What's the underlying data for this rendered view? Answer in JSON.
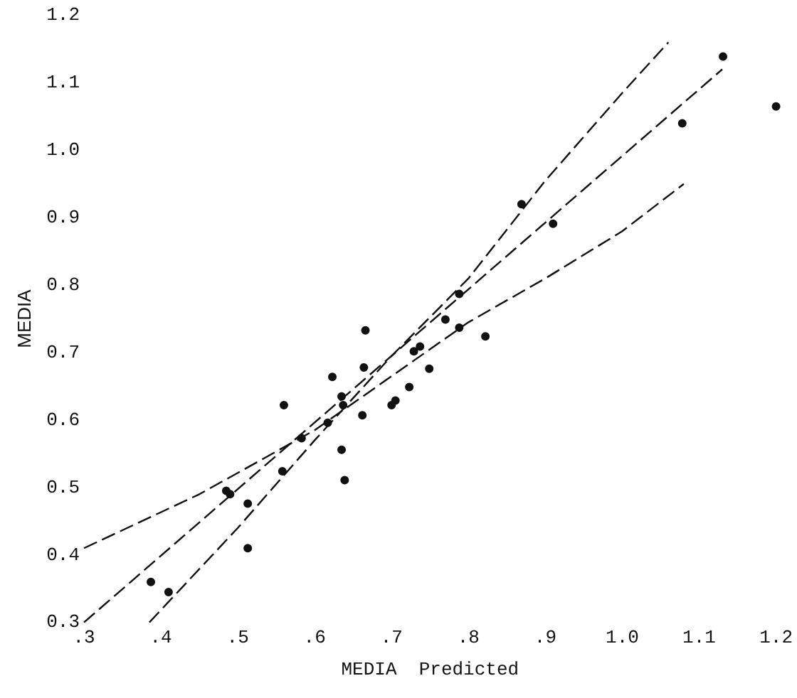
{
  "chart_data": {
    "type": "scatter",
    "xlabel": "MEDIA  Predicted",
    "ylabel": "MEDIA",
    "xlim": [
      0.3,
      1.2
    ],
    "ylim": [
      0.3,
      1.2
    ],
    "xticks": [
      {
        "value": 0.3,
        "label": ".3"
      },
      {
        "value": 0.4,
        "label": ".4"
      },
      {
        "value": 0.5,
        "label": ".5"
      },
      {
        "value": 0.6,
        "label": ".6"
      },
      {
        "value": 0.7,
        "label": ".7"
      },
      {
        "value": 0.8,
        "label": ".8"
      },
      {
        "value": 0.9,
        "label": ".9"
      },
      {
        "value": 1.0,
        "label": "1.0"
      },
      {
        "value": 1.1,
        "label": "1.1"
      },
      {
        "value": 1.2,
        "label": "1.2"
      }
    ],
    "yticks": [
      {
        "value": 0.3,
        "label": "0.3"
      },
      {
        "value": 0.4,
        "label": "0.4"
      },
      {
        "value": 0.5,
        "label": "0.5"
      },
      {
        "value": 0.6,
        "label": "0.6"
      },
      {
        "value": 0.7,
        "label": "0.7"
      },
      {
        "value": 0.8,
        "label": "0.8"
      },
      {
        "value": 0.9,
        "label": "0.9"
      },
      {
        "value": 1.0,
        "label": "1.0"
      },
      {
        "value": 1.1,
        "label": "1.1"
      },
      {
        "value": 1.2,
        "label": "1.2"
      }
    ],
    "grid": false,
    "legend": false,
    "series": [
      {
        "color": "#111111",
        "marker": "circle",
        "x": [
          0.387,
          0.41,
          0.485,
          0.49,
          0.513,
          0.513,
          0.558,
          0.56,
          0.583,
          0.617,
          0.623,
          0.635,
          0.635,
          0.637,
          0.639,
          0.662,
          0.664,
          0.666,
          0.7,
          0.705,
          0.723,
          0.729,
          0.737,
          0.749,
          0.77,
          0.788,
          0.788,
          0.822,
          0.869,
          0.91,
          1.078,
          1.131,
          1.2
        ],
        "values": [
          0.36,
          0.345,
          0.495,
          0.49,
          0.476,
          0.41,
          0.524,
          0.622,
          0.573,
          0.596,
          0.664,
          0.635,
          0.556,
          0.622,
          0.511,
          0.607,
          0.678,
          0.733,
          0.622,
          0.629,
          0.649,
          0.702,
          0.709,
          0.676,
          0.749,
          0.787,
          0.737,
          0.724,
          0.92,
          0.891,
          1.04,
          1.139,
          1.065
        ]
      },
      {
        "type": "line",
        "color": "#111111",
        "marker": "none",
        "line_style": "dashed",
        "x": [
          0.3,
          1.13
        ],
        "values": [
          0.3,
          1.12
        ]
      },
      {
        "type": "line",
        "color": "#111111",
        "marker": "none",
        "line_style": "dashed",
        "x": [
          0.385,
          0.5,
          0.6,
          0.7,
          0.8,
          0.9,
          1.0,
          1.06
        ],
        "values": [
          0.3,
          0.44,
          0.57,
          0.695,
          0.81,
          0.955,
          1.085,
          1.16
        ]
      },
      {
        "type": "line",
        "color": "#111111",
        "marker": "none",
        "line_style": "dashed",
        "x": [
          0.3,
          0.45,
          0.6,
          0.7,
          0.8,
          0.9,
          1.0,
          1.08
        ],
        "values": [
          0.41,
          0.49,
          0.585,
          0.665,
          0.745,
          0.81,
          0.88,
          0.95
        ]
      }
    ]
  }
}
